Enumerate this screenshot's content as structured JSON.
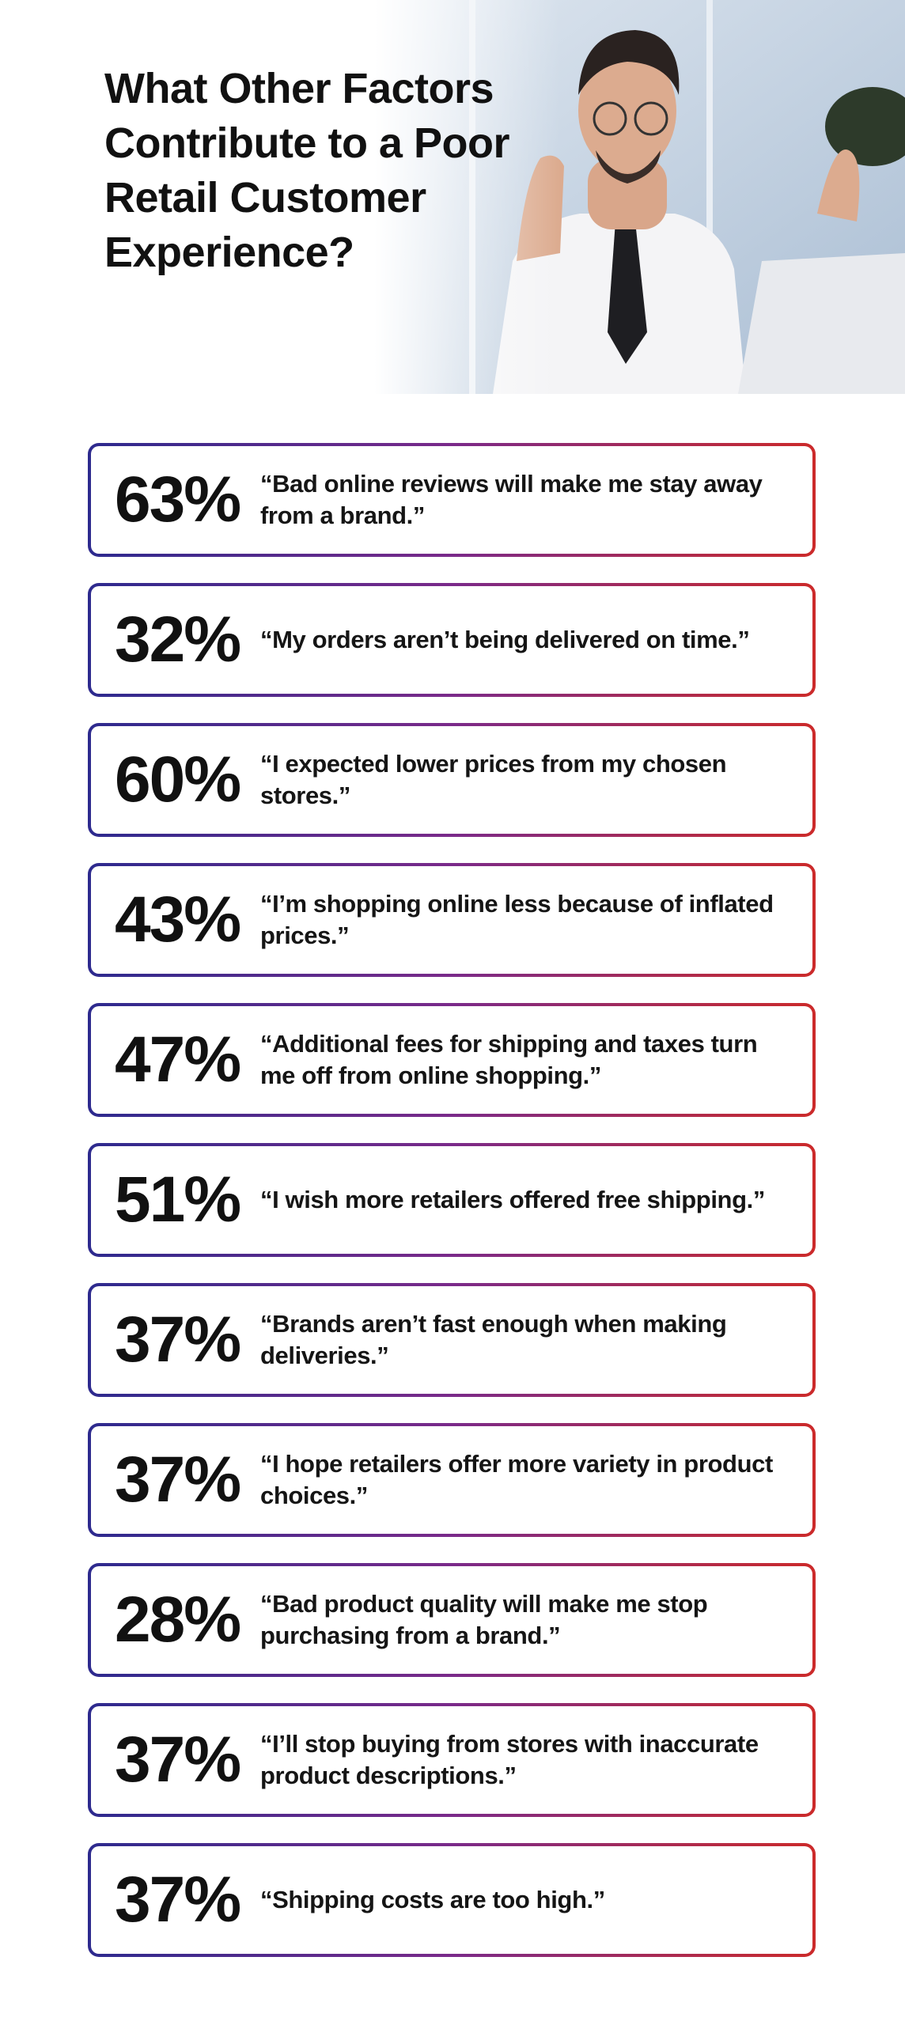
{
  "header": {
    "title": "What Other Factors Contribute to a Poor Retail Customer Experience?"
  },
  "items": [
    {
      "percent": "63%",
      "quote": "“Bad online reviews will make me stay away from a brand.”"
    },
    {
      "percent": "32%",
      "quote": "“My orders aren’t being delivered on time.”"
    },
    {
      "percent": "60%",
      "quote": "“I expected lower prices from my chosen stores.”"
    },
    {
      "percent": "43%",
      "quote": "“I’m shopping online less because of inflated prices.”"
    },
    {
      "percent": "47%",
      "quote": "“Additional fees for shipping and taxes turn me off from online shopping.”"
    },
    {
      "percent": "51%",
      "quote": "“I wish more retailers offered free shipping.”"
    },
    {
      "percent": "37%",
      "quote": "“Brands aren’t fast enough when making deliveries.”"
    },
    {
      "percent": "37%",
      "quote": "“I hope retailers offer more variety in product choices.”"
    },
    {
      "percent": "28%",
      "quote": "“Bad product quality will make me stop purchasing from a brand.”"
    },
    {
      "percent": "37%",
      "quote": "“I’ll stop buying from stores with inaccurate product descriptions.”"
    },
    {
      "percent": "37%",
      "quote": "“Shipping costs are too high.”"
    }
  ]
}
